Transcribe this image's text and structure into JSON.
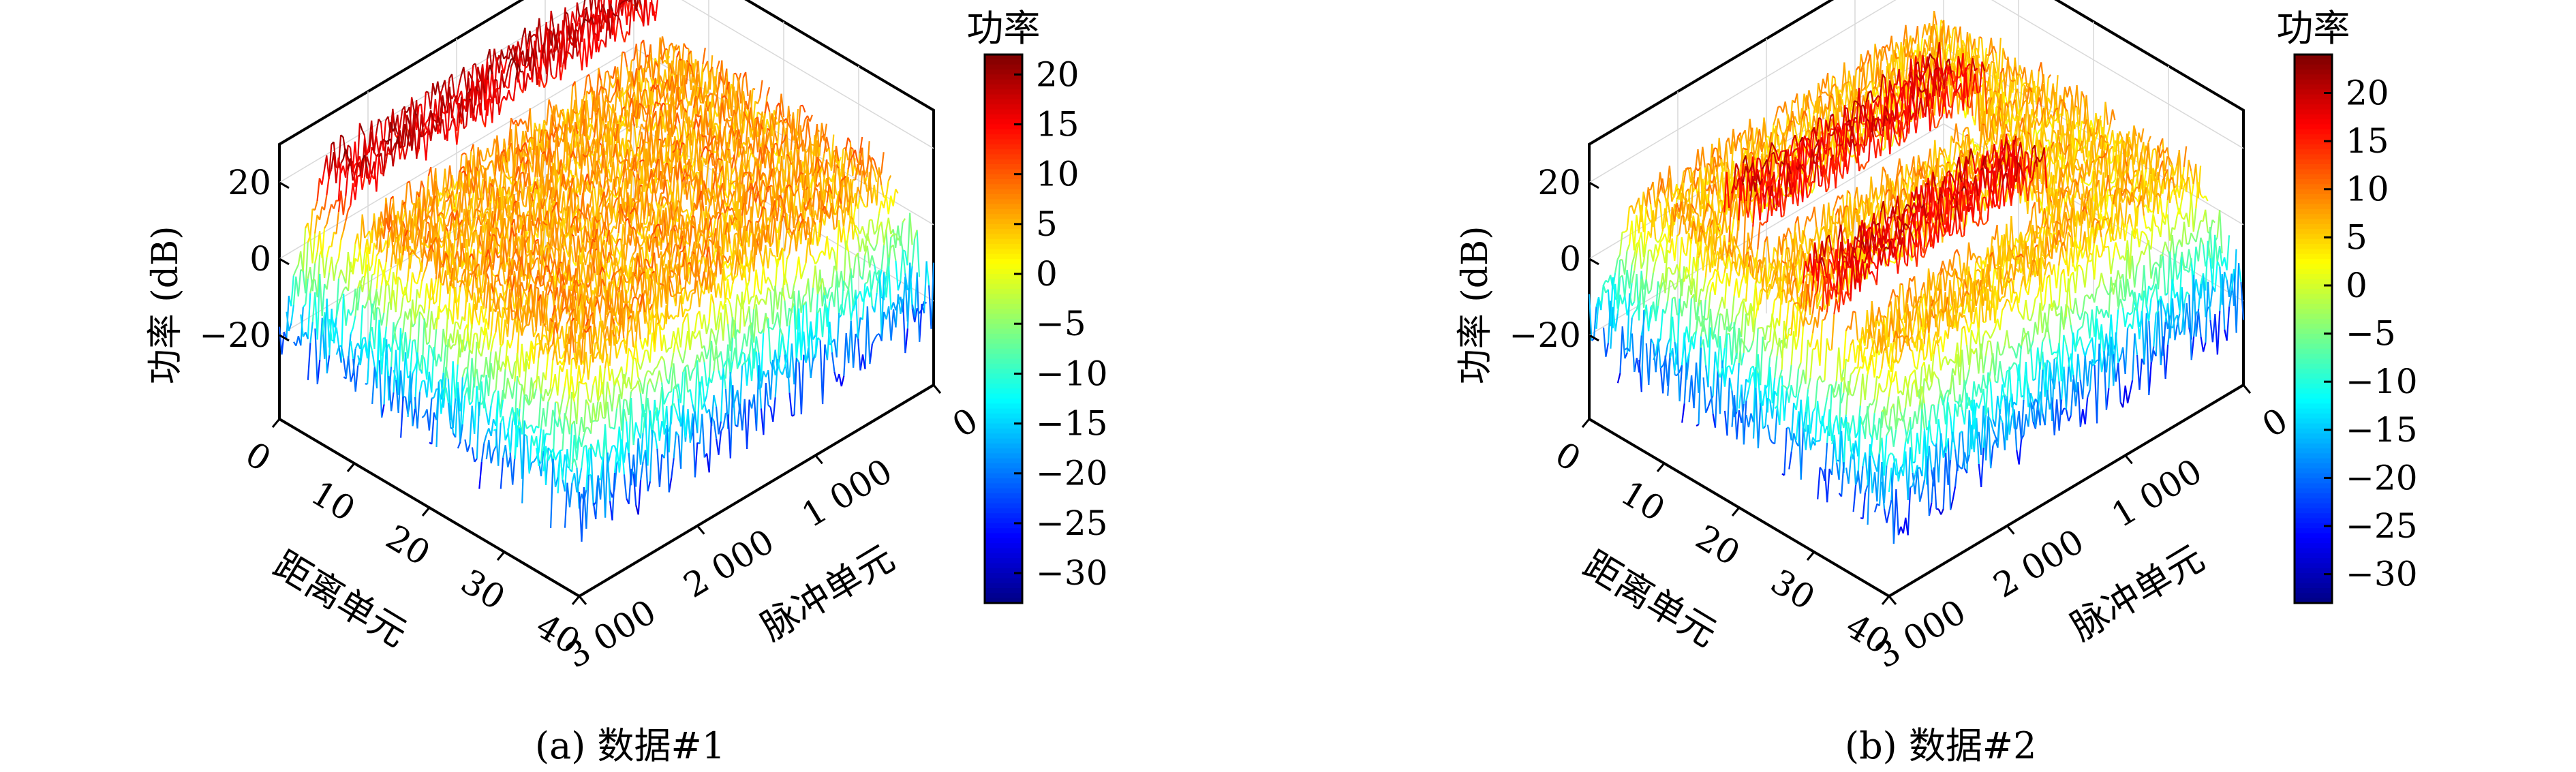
{
  "chart_data": [
    {
      "type": "surface",
      "caption": "(a) 数据#1",
      "zlabel": "功率 (dB)",
      "xlabel": "距离单元",
      "ylabel": "脉冲单元",
      "x_ticks": [
        "0",
        "10",
        "20",
        "30",
        "40"
      ],
      "y_ticks": [
        "0",
        "1 000",
        "2 000",
        "3 000"
      ],
      "z_ticks": [
        "20",
        "0",
        "−20"
      ],
      "zlim": [
        -30,
        20
      ],
      "xlim": [
        0,
        40
      ],
      "ylim": [
        0,
        3000
      ],
      "colorbar": {
        "title": "功率",
        "ticks": [
          "20",
          "15",
          "10",
          "5",
          "0",
          "−5",
          "−10",
          "−15",
          "−20",
          "−25",
          "−30"
        ],
        "tick_values": [
          20,
          15,
          10,
          5,
          0,
          -5,
          -10,
          -15,
          -20,
          -25,
          -30
        ],
        "range": [
          -33,
          22
        ],
        "colormap": "jet"
      },
      "surface_summary": {
        "background_level_db": 6,
        "edge_level_db_min": -30,
        "strong_returns": [
          {
            "range_cells": [
              0,
              4
            ],
            "pulse_cells": [
              0,
              3000
            ],
            "level_db": 17
          },
          {
            "range_cells": [
              35,
              40
            ],
            "pulse_cells": [
              400,
              900
            ],
            "level_db": 13
          }
        ]
      }
    },
    {
      "type": "surface",
      "caption": "(b) 数据#2",
      "zlabel": "功率 (dB)",
      "xlabel": "距离单元",
      "ylabel": "脉冲单元",
      "x_ticks": [
        "0",
        "10",
        "20",
        "30",
        "40"
      ],
      "y_ticks": [
        "0",
        "1 000",
        "2 000",
        "3 000"
      ],
      "z_ticks": [
        "20",
        "0",
        "−20"
      ],
      "zlim": [
        -30,
        20
      ],
      "xlim": [
        0,
        40
      ],
      "ylim": [
        0,
        3000
      ],
      "colorbar": {
        "title": "功率",
        "ticks": [
          "20",
          "15",
          "10",
          "5",
          "0",
          "−5",
          "−10",
          "−15",
          "−20",
          "−25",
          "−30"
        ],
        "tick_values": [
          20,
          15,
          10,
          5,
          0,
          -5,
          -10,
          -15,
          -20,
          -25,
          -30
        ],
        "range": [
          -33,
          24
        ],
        "colormap": "jet"
      },
      "surface_summary": {
        "background_level_db": 6,
        "edge_level_db_min": -30,
        "strong_returns": [
          {
            "range_cells": [
              8,
              14
            ],
            "pulse_cells": [
              500,
              2400
            ],
            "level_db": 17
          },
          {
            "range_cells": [
              22,
              28
            ],
            "pulse_cells": [
              900,
              2800
            ],
            "level_db": 17
          }
        ]
      }
    }
  ]
}
